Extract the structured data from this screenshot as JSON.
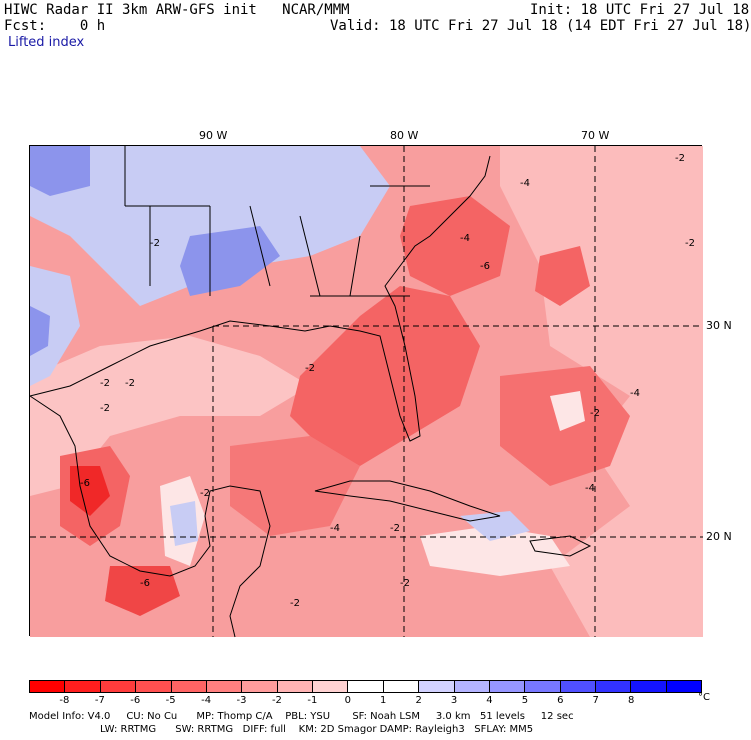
{
  "header": {
    "title_left": "HIWC Radar II 3km ARW-GFS init   NCAR/MMM",
    "init": "Init: 18 UTC Fri 27 Jul 18",
    "fcst": "Fcst:    0 h",
    "valid": "Valid: 18 UTC Fri 27 Jul 18 (14 EDT Fri 27 Jul 18)",
    "field": "Lifted index"
  },
  "map": {
    "lon_labels": [
      "90 W",
      "80 W",
      "70 W"
    ],
    "lat_labels": [
      "30 N",
      "20 N"
    ],
    "contour_labels": [
      "-2",
      "-4",
      "-6"
    ],
    "colors": {
      "neg_strong": "#f02828",
      "neg_mid": "#f46464",
      "neg_light": "#f89e9e",
      "neg_faint": "#fcd0d0",
      "pos_light": "#c8ccf4",
      "pos_mid": "#8c94ec",
      "land_line": "#000000",
      "terrain_line": "#8b0000"
    }
  },
  "colorbar": {
    "labels": [
      "-8",
      "-7",
      "-6",
      "-5",
      "-4",
      "-3",
      "-2",
      "-1",
      "0",
      "1",
      "2",
      "3",
      "4",
      "5",
      "6",
      "7",
      "8"
    ],
    "unit": "°C",
    "colors": [
      "#ff0000",
      "#ff1e1e",
      "#ff3c3c",
      "#ff5050",
      "#ff6464",
      "#ff8080",
      "#ff9c9c",
      "#ffb4b4",
      "#ffd2d2",
      "#ffffff",
      "#ffffff",
      "#d2d2ff",
      "#b4b4ff",
      "#9696ff",
      "#7878ff",
      "#5050ff",
      "#3232ff",
      "#1414ff",
      "#0000ff"
    ]
  },
  "footer": {
    "line1": "Model Info: V4.0     CU: No Cu      MP: Thomp C/A    PBL: YSU       SF: Noah LSM     3.0 km   51 levels     12 sec",
    "line2": "LW: RRTMG      SW: RRTMG   DIFF: full    KM: 2D Smagor DAMP: Rayleigh3   SFLAY: MM5"
  }
}
